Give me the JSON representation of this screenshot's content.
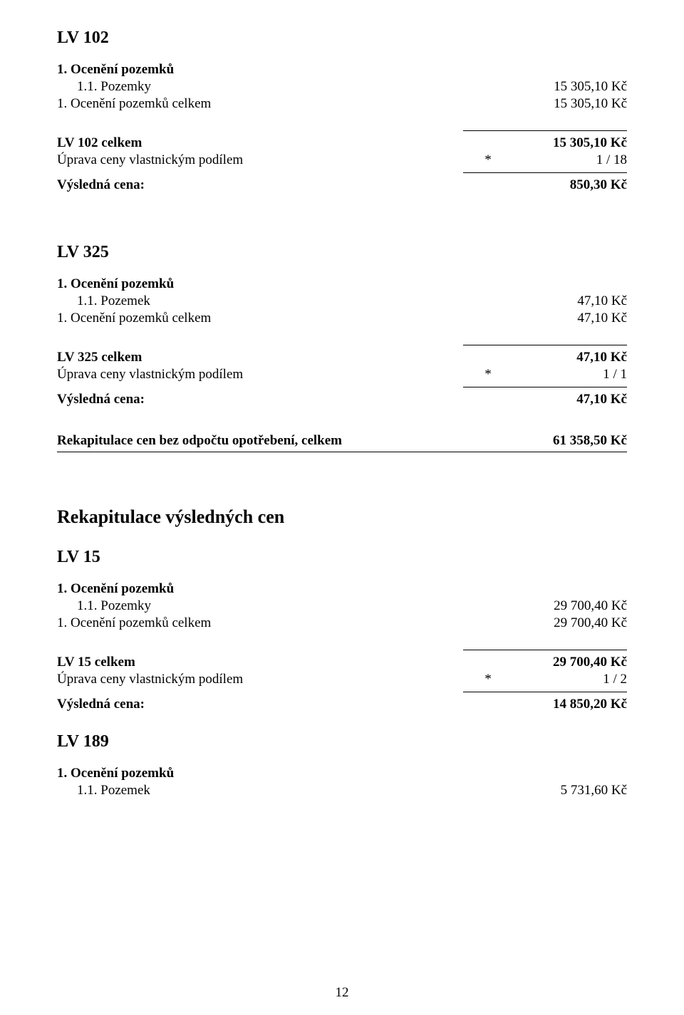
{
  "page_number": "12",
  "colors": {
    "text": "#000000",
    "bg": "#ffffff",
    "rule": "#000000"
  },
  "typography": {
    "family": "Times New Roman",
    "body_pt": 19,
    "section_heading_pt": 24,
    "big_heading_pt": 26
  },
  "lv102": {
    "heading": "LV 102",
    "item_title": "1. Ocenění pozemků",
    "subitem_label": "1.1. Pozemky",
    "subitem_value": "15 305,10 Kč",
    "total_label": "1. Ocenění pozemků celkem",
    "total_value": "15 305,10 Kč",
    "celkem_label": "LV 102 celkem",
    "celkem_value": "15 305,10 Kč",
    "uprava_label": "Úprava ceny vlastnickým podílem",
    "uprava_star": "*",
    "uprava_value": "1 / 18",
    "result_label": "Výsledná cena:",
    "result_value": "850,30 Kč"
  },
  "lv325": {
    "heading": "LV 325",
    "item_title": "1. Ocenění pozemků",
    "subitem_label": "1.1. Pozemek",
    "subitem_value": "47,10 Kč",
    "total_label": "1. Ocenění pozemků celkem",
    "total_value": "47,10 Kč",
    "celkem_label": "LV 325 celkem",
    "celkem_value": "47,10 Kč",
    "uprava_label": "Úprava ceny vlastnickým podílem",
    "uprava_star": "*",
    "uprava_value": "1 / 1",
    "result_label": "Výsledná cena:",
    "result_value": "47,10 Kč"
  },
  "recap_no_wear": {
    "label": "Rekapitulace cen bez odpočtu opotřebení, celkem",
    "value": "61 358,50 Kč"
  },
  "recap_final_heading": "Rekapitulace výsledných cen",
  "lv15": {
    "heading": "LV 15",
    "item_title": "1. Ocenění pozemků",
    "subitem_label": "1.1. Pozemky",
    "subitem_value": "29 700,40 Kč",
    "total_label": "1. Ocenění pozemků celkem",
    "total_value": "29 700,40 Kč",
    "celkem_label": "LV 15 celkem",
    "celkem_value": "29 700,40 Kč",
    "uprava_label": "Úprava ceny vlastnickým podílem",
    "uprava_star": "*",
    "uprava_value": "1 / 2",
    "result_label": "Výsledná cena:",
    "result_value": "14 850,20 Kč"
  },
  "lv189": {
    "heading": "LV 189",
    "item_title": "1. Ocenění pozemků",
    "subitem_label": "1.1. Pozemek",
    "subitem_value": "5 731,60 Kč"
  }
}
